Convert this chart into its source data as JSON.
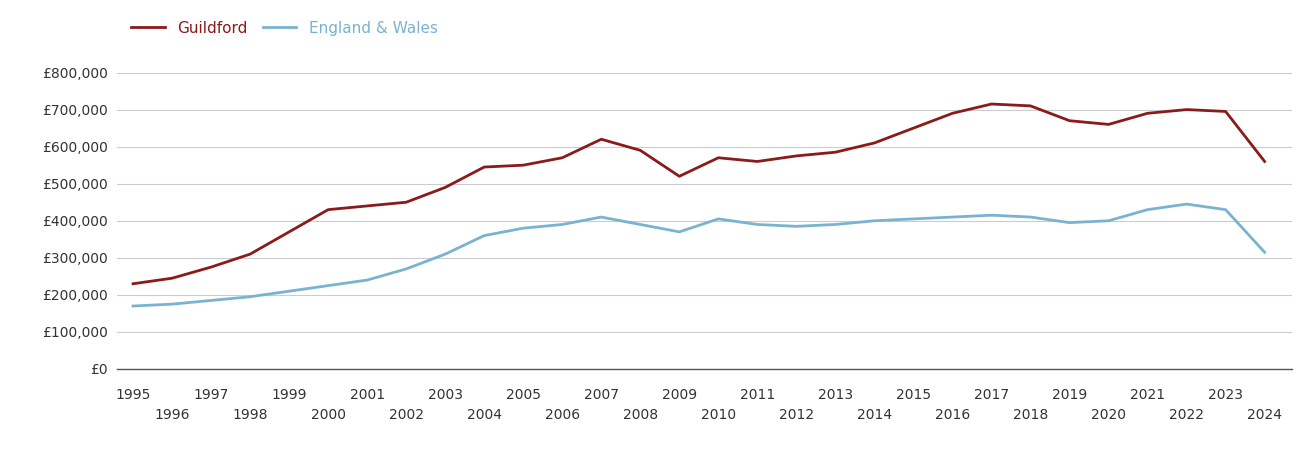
{
  "title": "",
  "guildford_data": {
    "years": [
      1995,
      1996,
      1997,
      1998,
      1999,
      2000,
      2001,
      2002,
      2003,
      2004,
      2005,
      2006,
      2007,
      2008,
      2009,
      2010,
      2011,
      2012,
      2013,
      2014,
      2015,
      2016,
      2017,
      2018,
      2019,
      2020,
      2021,
      2022,
      2023,
      2024
    ],
    "values": [
      230000,
      245000,
      275000,
      310000,
      370000,
      430000,
      440000,
      450000,
      490000,
      545000,
      550000,
      570000,
      620000,
      590000,
      520000,
      570000,
      560000,
      575000,
      585000,
      610000,
      650000,
      690000,
      715000,
      710000,
      670000,
      660000,
      690000,
      700000,
      695000,
      560000
    ]
  },
  "england_wales_data": {
    "years": [
      1995,
      1996,
      1997,
      1998,
      1999,
      2000,
      2001,
      2002,
      2003,
      2004,
      2005,
      2006,
      2007,
      2008,
      2009,
      2010,
      2011,
      2012,
      2013,
      2014,
      2015,
      2016,
      2017,
      2018,
      2019,
      2020,
      2021,
      2022,
      2023,
      2024
    ],
    "values": [
      170000,
      175000,
      185000,
      195000,
      210000,
      225000,
      240000,
      270000,
      310000,
      360000,
      380000,
      390000,
      410000,
      390000,
      370000,
      405000,
      390000,
      385000,
      390000,
      400000,
      405000,
      410000,
      415000,
      410000,
      395000,
      400000,
      430000,
      445000,
      430000,
      315000
    ]
  },
  "guildford_color": "#8b1a1a",
  "england_wales_color": "#7ab3d0",
  "line_width": 2.0,
  "ylim": [
    0,
    850000
  ],
  "yticks": [
    0,
    100000,
    200000,
    300000,
    400000,
    500000,
    600000,
    700000,
    800000
  ],
  "ytick_labels": [
    "£0",
    "£100,000",
    "£200,000",
    "£300,000",
    "£400,000",
    "£500,000",
    "£600,000",
    "£700,000",
    "£800,000"
  ],
  "legend_labels": [
    "Guildford",
    "England & Wales"
  ],
  "grid_color": "#cccccc",
  "background_color": "#ffffff",
  "tick_fontsize": 10,
  "legend_fontsize": 11,
  "xlim_left": 1994.6,
  "xlim_right": 2024.7
}
